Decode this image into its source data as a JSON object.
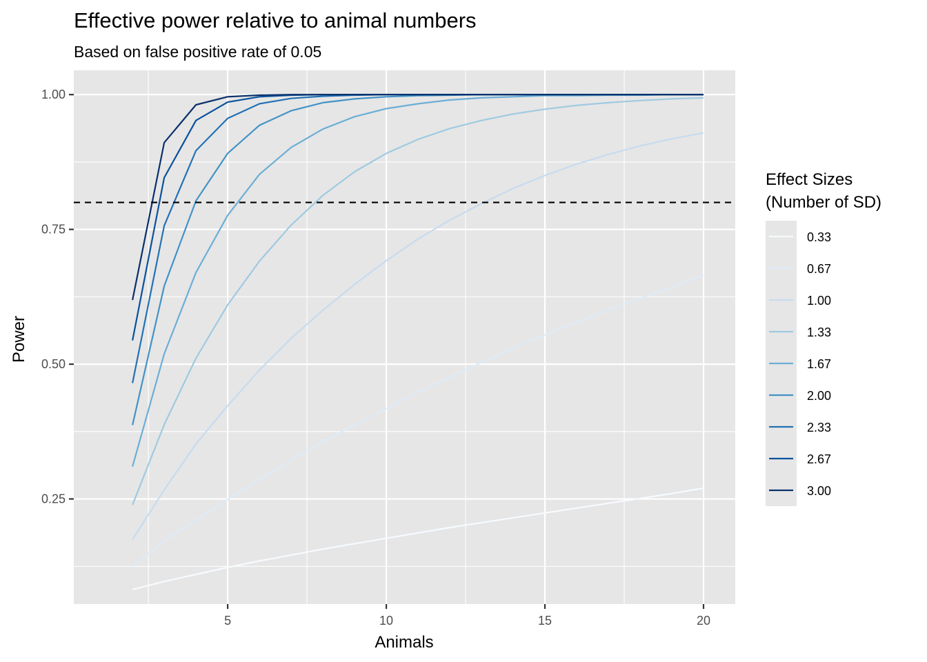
{
  "chart_data": {
    "type": "line",
    "title": "Effective power relative to animal numbers",
    "subtitle": "Based on false positive rate of  0.05",
    "xlabel": "Animals",
    "ylabel": "Power",
    "xlim": [
      0.15,
      21.0
    ],
    "ylim": [
      0.055,
      1.045
    ],
    "x_ticks": [
      5,
      10,
      15,
      20
    ],
    "x_tick_labels": [
      "5",
      "10",
      "15",
      "20"
    ],
    "x_minor_ticks": [
      2.5,
      7.5,
      12.5,
      17.5
    ],
    "y_ticks": [
      0.25,
      0.5,
      0.75,
      1.0
    ],
    "y_tick_labels": [
      "0.25",
      "0.50",
      "0.75",
      "1.00"
    ],
    "y_minor_ticks": [
      0.125,
      0.375,
      0.625,
      0.875
    ],
    "grid": true,
    "panel_background": "#e6e6e6",
    "reference_line": {
      "y": 0.8,
      "style": "dashed",
      "color": "#000000"
    },
    "x": [
      2,
      3,
      4,
      5,
      6,
      7,
      8,
      9,
      10,
      11,
      12,
      13,
      14,
      15,
      16,
      17,
      18,
      19,
      20
    ],
    "legend": {
      "title_line1": "Effect Sizes",
      "title_line2": "(Number of SD)",
      "placement": "right"
    },
    "series": [
      {
        "name": "0.33",
        "color": "#f7fbff",
        "values": [
          0.082,
          0.097,
          0.11,
          0.123,
          0.135,
          0.146,
          0.157,
          0.167,
          0.177,
          0.187,
          0.197,
          0.206,
          0.215,
          0.224,
          0.233,
          0.242,
          0.251,
          0.26,
          0.27
        ]
      },
      {
        "name": "0.67",
        "color": "#deebf7",
        "values": [
          0.125,
          0.172,
          0.211,
          0.249,
          0.286,
          0.322,
          0.356,
          0.388,
          0.418,
          0.448,
          0.476,
          0.503,
          0.529,
          0.554,
          0.578,
          0.6,
          0.622,
          0.643,
          0.665
        ]
      },
      {
        "name": "1.00",
        "color": "#c6dbef",
        "values": [
          0.175,
          0.267,
          0.352,
          0.423,
          0.489,
          0.548,
          0.6,
          0.648,
          0.692,
          0.732,
          0.767,
          0.798,
          0.826,
          0.85,
          0.871,
          0.889,
          0.905,
          0.918,
          0.929
        ]
      },
      {
        "name": "1.33",
        "color": "#9ecae1",
        "values": [
          0.239,
          0.388,
          0.511,
          0.61,
          0.691,
          0.758,
          0.813,
          0.857,
          0.891,
          0.917,
          0.937,
          0.952,
          0.964,
          0.973,
          0.98,
          0.985,
          0.989,
          0.992,
          0.994
        ]
      },
      {
        "name": "1.67",
        "color": "#6baed6",
        "values": [
          0.31,
          0.519,
          0.67,
          0.776,
          0.852,
          0.902,
          0.936,
          0.959,
          0.974,
          0.983,
          0.99,
          0.994,
          0.996,
          0.998,
          0.998,
          0.999,
          0.999,
          1.0,
          1.0
        ]
      },
      {
        "name": "2.00",
        "color": "#4292c6",
        "values": [
          0.387,
          0.645,
          0.803,
          0.891,
          0.943,
          0.97,
          0.985,
          0.992,
          0.996,
          0.998,
          0.999,
          1.0,
          1.0,
          1.0,
          1.0,
          1.0,
          1.0,
          1.0,
          1.0
        ]
      },
      {
        "name": "2.33",
        "color": "#2171b5",
        "values": [
          0.465,
          0.757,
          0.896,
          0.956,
          0.983,
          0.993,
          0.997,
          0.999,
          1.0,
          1.0,
          1.0,
          1.0,
          1.0,
          1.0,
          1.0,
          1.0,
          1.0,
          1.0,
          1.0
        ]
      },
      {
        "name": "2.67",
        "color": "#08519c",
        "values": [
          0.544,
          0.846,
          0.952,
          0.986,
          0.996,
          0.999,
          1.0,
          1.0,
          1.0,
          1.0,
          1.0,
          1.0,
          1.0,
          1.0,
          1.0,
          1.0,
          1.0,
          1.0,
          1.0
        ]
      },
      {
        "name": "3.00",
        "color": "#08306b",
        "values": [
          0.619,
          0.911,
          0.981,
          0.996,
          0.999,
          1.0,
          1.0,
          1.0,
          1.0,
          1.0,
          1.0,
          1.0,
          1.0,
          1.0,
          1.0,
          1.0,
          1.0,
          1.0,
          1.0
        ]
      }
    ]
  }
}
